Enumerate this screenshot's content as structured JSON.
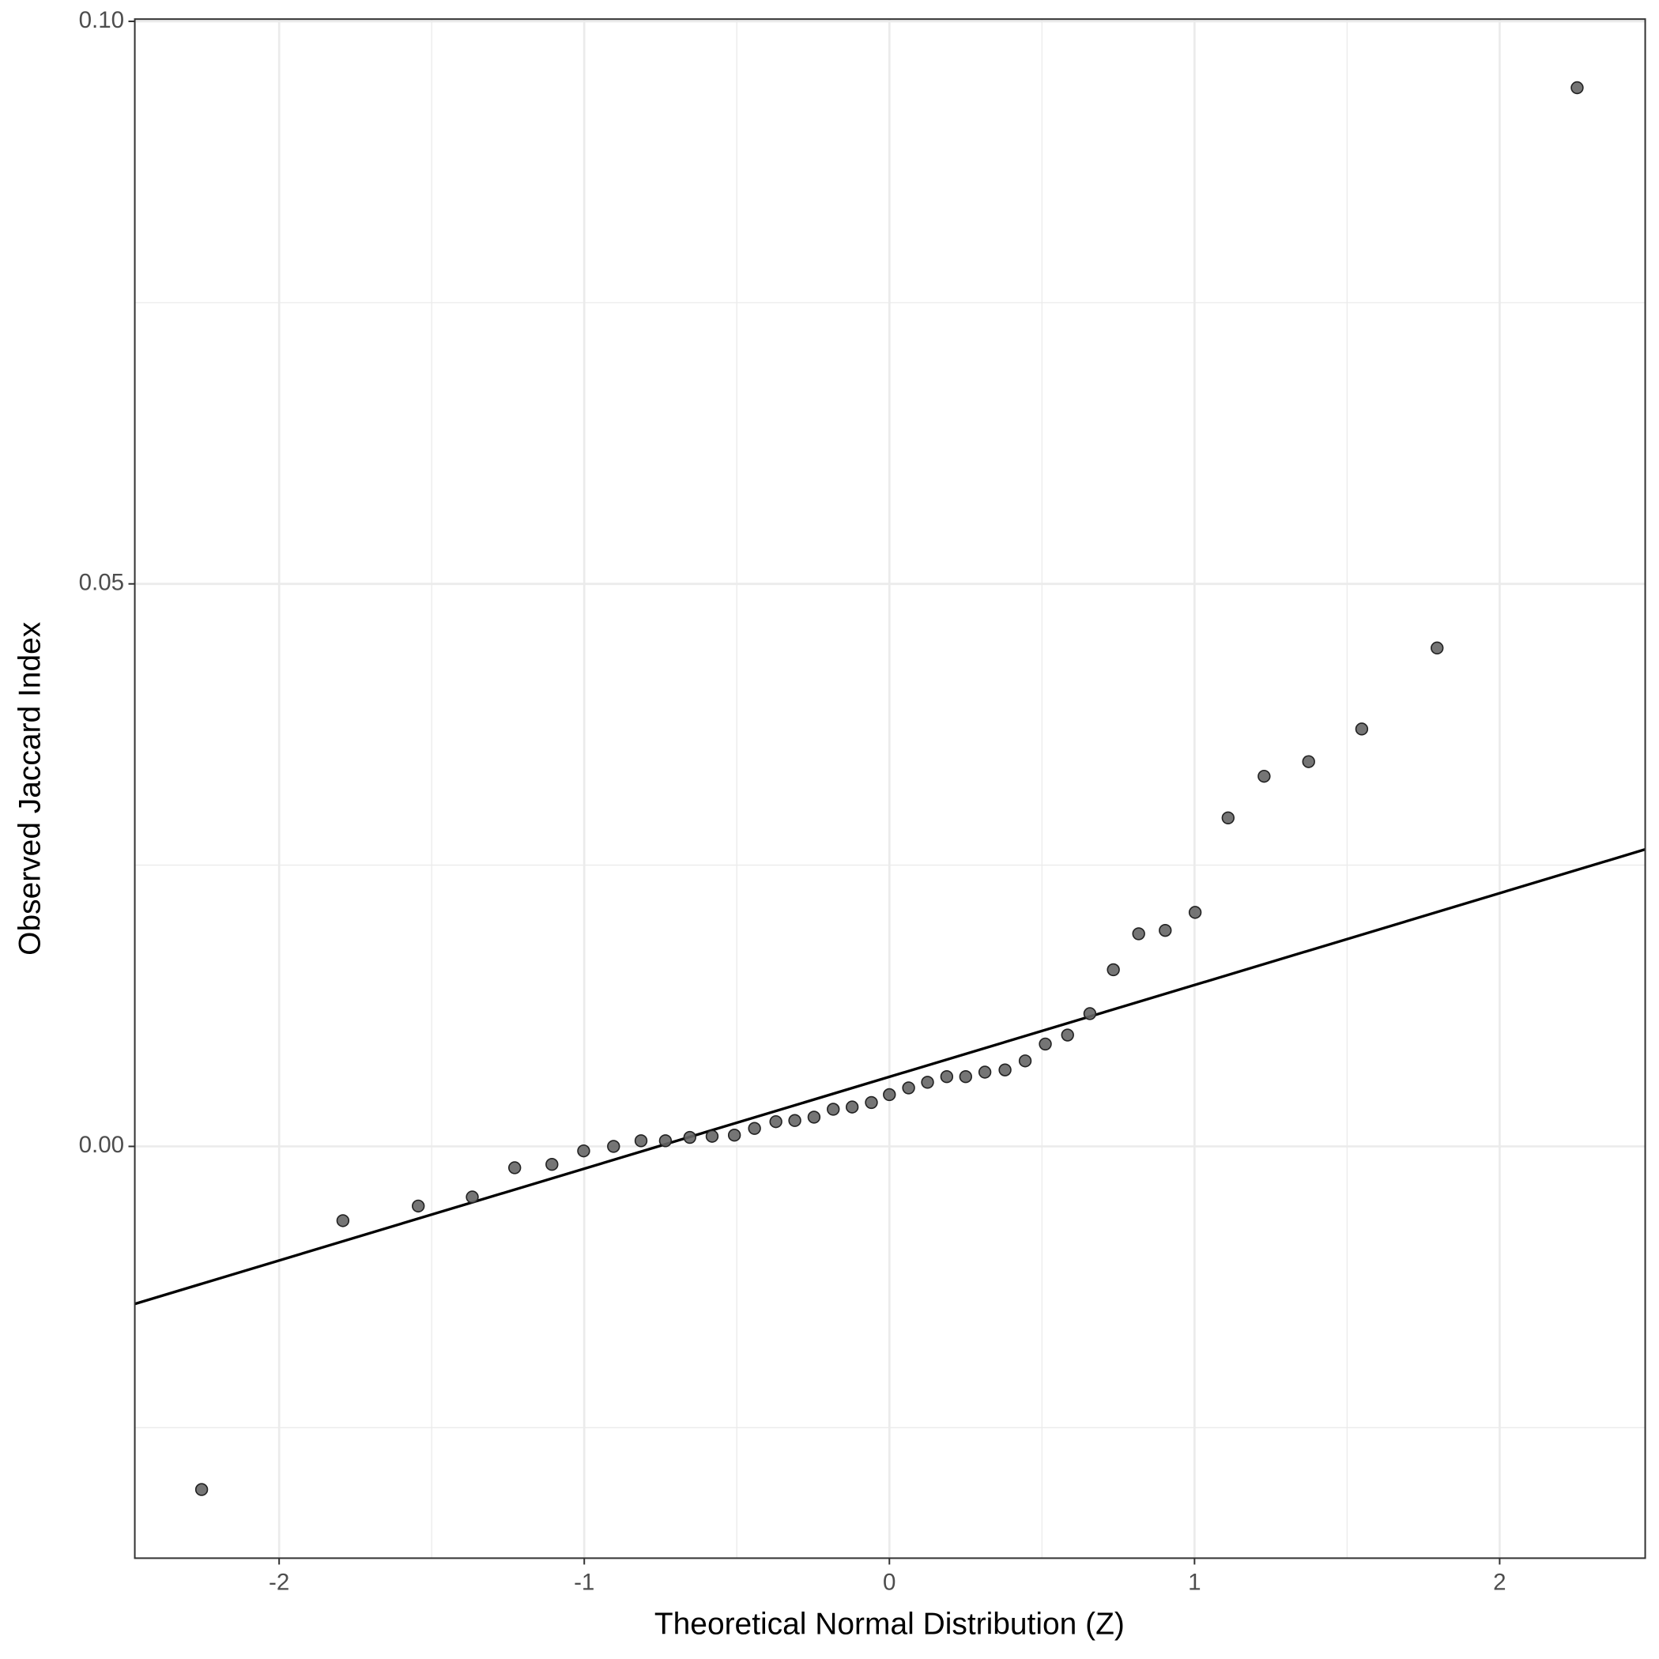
{
  "chart_data": {
    "type": "scatter",
    "x_label": "Theoretical Normal Distribution (Z)",
    "y_label": "Observed Jaccard Index",
    "x": [
      -2.254,
      -1.791,
      -1.544,
      -1.367,
      -1.228,
      -1.106,
      -1.002,
      -0.904,
      -0.814,
      -0.734,
      -0.654,
      -0.581,
      -0.508,
      -0.442,
      -0.372,
      -0.31,
      -0.247,
      -0.184,
      -0.122,
      -0.059,
      0.0,
      0.063,
      0.125,
      0.188,
      0.25,
      0.313,
      0.379,
      0.445,
      0.511,
      0.584,
      0.657,
      0.734,
      0.817,
      0.904,
      1.002,
      1.11,
      1.228,
      1.374,
      1.548,
      1.795,
      2.254
    ],
    "values": [
      -0.0305,
      -0.0066,
      -0.0053,
      -0.0045,
      -0.0019,
      -0.0016,
      -0.0004,
      0.0,
      0.0005,
      0.0005,
      0.0008,
      0.0009,
      0.001,
      0.0016,
      0.0022,
      0.0023,
      0.0026,
      0.0033,
      0.0035,
      0.0039,
      0.0046,
      0.0052,
      0.0057,
      0.0062,
      0.0062,
      0.0066,
      0.0068,
      0.0076,
      0.0091,
      0.0099,
      0.0118,
      0.0157,
      0.0189,
      0.0192,
      0.0208,
      0.0292,
      0.0329,
      0.0342,
      0.0371,
      0.0443,
      0.0941
    ],
    "color": "#666666",
    "reference_line": {
      "x": [
        -2.473,
        2.477
      ],
      "values": [
        -0.014,
        0.0264
      ],
      "color": "#000000"
    },
    "xlim": [
      -2.473,
      2.477
    ],
    "ylim": [
      -0.0366,
      0.1002
    ],
    "xticks": [
      -2,
      -1,
      0,
      1,
      2
    ],
    "yticks": [
      {
        "value": 0,
        "label": "0.00"
      },
      {
        "value": 0.05,
        "label": "0.05"
      },
      {
        "value": 0.1,
        "label": "0.10"
      }
    ],
    "grid": true
  }
}
